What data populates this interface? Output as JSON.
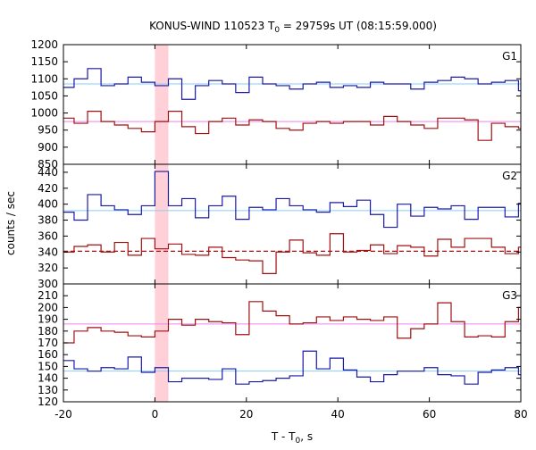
{
  "title": "KONUS-WIND 110523 T",
  "title_sub": "0",
  "title_rest": " = 29759s UT (08:15:59.000)",
  "ylabel": "counts / sec",
  "xlabel": "T - T",
  "xlabel_sub": "0",
  "xlabel_rest": ", s",
  "colors": {
    "upper": "#1a1aa6",
    "lower": "#a01010",
    "bg_line_upper": "#87cefa",
    "bg_line_lower": "#ee82ee",
    "highlight": "#ffd0d8"
  },
  "chart_data": {
    "type": "line",
    "x_range": [
      -20,
      80
    ],
    "x_ticks": [
      "-20",
      "0",
      "20",
      "40",
      "60",
      "80"
    ],
    "x_tick_values": [
      -20,
      0,
      20,
      40,
      60,
      80
    ],
    "highlight_interval": [
      0,
      2.944
    ],
    "bin_edges": [
      -20.608,
      -17.664,
      -14.72,
      -11.776,
      -8.832,
      -5.888,
      -2.944,
      0,
      2.944,
      5.888,
      8.832,
      11.776,
      14.72,
      17.664,
      20.608,
      23.552,
      26.496,
      29.44,
      32.384,
      35.328,
      38.272,
      41.216,
      44.16,
      47.104,
      50.048,
      52.992,
      55.936,
      58.88,
      61.824,
      64.768,
      67.712,
      70.656,
      73.6,
      76.544,
      79.488,
      82.432
    ],
    "panels": [
      {
        "name": "G1",
        "y_range": [
          850,
          1200
        ],
        "y_ticks": [
          "850",
          "900",
          "950",
          "1000",
          "1050",
          "1100",
          "1150",
          "1200"
        ],
        "y_tick_values": [
          850,
          900,
          950,
          1000,
          1050,
          1100,
          1150,
          1200
        ],
        "series": [
          {
            "role": "upper",
            "background": 1085,
            "background_style": "solid",
            "values": [
              1075,
              1100,
              1130,
              1080,
              1085,
              1105,
              1090,
              1080,
              1100,
              1040,
              1080,
              1095,
              1085,
              1060,
              1105,
              1085,
              1080,
              1070,
              1085,
              1090,
              1075,
              1080,
              1075,
              1090,
              1085,
              1085,
              1070,
              1090,
              1095,
              1105,
              1100,
              1085,
              1090,
              1095,
              1065
            ]
          },
          {
            "role": "lower",
            "background": 975,
            "background_style": "solid",
            "values": [
              985,
              970,
              1005,
              975,
              965,
              955,
              945,
              975,
              1005,
              960,
              940,
              975,
              985,
              965,
              980,
              975,
              955,
              950,
              970,
              975,
              970,
              975,
              975,
              965,
              990,
              975,
              965,
              955,
              985,
              985,
              980,
              920,
              970,
              960,
              955
            ]
          }
        ]
      },
      {
        "name": "G2",
        "y_range": [
          300,
          450
        ],
        "y_ticks": [
          "300",
          "320",
          "340",
          "360",
          "380",
          "400",
          "420",
          "440"
        ],
        "y_tick_values": [
          300,
          320,
          340,
          360,
          380,
          400,
          420,
          440
        ],
        "series": [
          {
            "role": "upper",
            "background": 392,
            "background_style": "solid",
            "values": [
              390,
              380,
              412,
              398,
              393,
              387,
              398,
              441,
              398,
              407,
              383,
              398,
              410,
              381,
              396,
              393,
              407,
              398,
              393,
              390,
              402,
              397,
              405,
              387,
              371,
              400,
              385,
              396,
              394,
              398,
              381,
              396,
              396,
              384,
              401
            ]
          },
          {
            "role": "lower",
            "background": 341,
            "background_style": "dashed",
            "values": [
              340,
              347,
              349,
              340,
              352,
              336,
              357,
              344,
              350,
              337,
              336,
              346,
              333,
              330,
              329,
              313,
              340,
              355,
              339,
              336,
              363,
              340,
              342,
              349,
              338,
              348,
              346,
              335,
              356,
              346,
              357,
              357,
              346,
              338,
              346
            ]
          }
        ]
      },
      {
        "name": "G3",
        "y_range": [
          120,
          220
        ],
        "y_ticks": [
          "120",
          "130",
          "140",
          "150",
          "160",
          "170",
          "180",
          "190",
          "200",
          "210"
        ],
        "y_tick_values": [
          120,
          130,
          140,
          150,
          160,
          170,
          180,
          190,
          200,
          210
        ],
        "series": [
          {
            "role": "upper",
            "background": 146,
            "background_style": "solid",
            "values": [
              155,
              148,
              146,
              149,
              148,
              158,
              145,
              149,
              137,
              140,
              140,
              139,
              148,
              135,
              137,
              138,
              140,
              142,
              163,
              148,
              157,
              147,
              141,
              137,
              143,
              146,
              146,
              149,
              143,
              142,
              135,
              145,
              147,
              149,
              143
            ]
          },
          {
            "role": "lower",
            "background": 186,
            "background_style": "solid",
            "values": [
              170,
              180,
              183,
              180,
              179,
              176,
              175,
              180,
              190,
              185,
              190,
              188,
              187,
              177,
              205,
              197,
              193,
              186,
              187,
              192,
              189,
              192,
              190,
              189,
              192,
              174,
              182,
              186,
              204,
              188,
              175,
              176,
              175,
              188,
              200
            ]
          }
        ]
      }
    ]
  }
}
